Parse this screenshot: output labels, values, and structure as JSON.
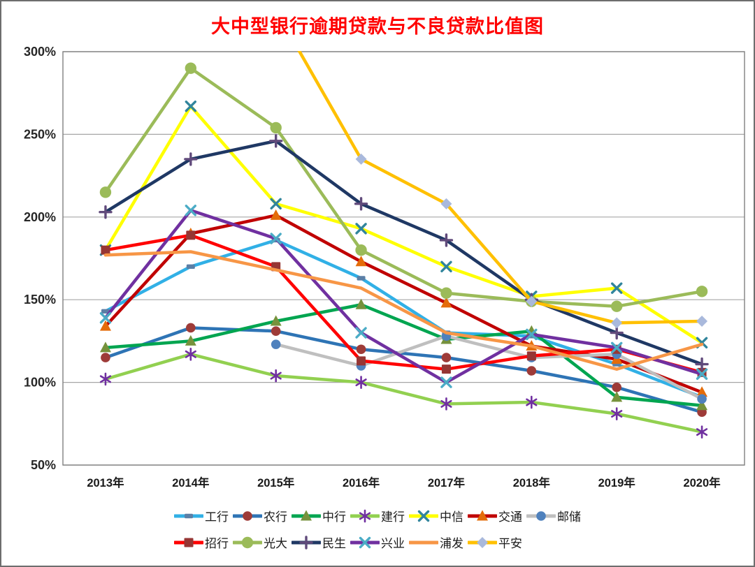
{
  "title": {
    "text": "大中型银行逾期贷款与不良贷款比值图",
    "color": "#FF0000"
  },
  "axis": {
    "grid_color": "#A6A6A6",
    "border_color": "#808080",
    "tick_color": "#262626",
    "label_color": "#1A1A1A"
  },
  "chart_data": {
    "type": "line",
    "title": "大中型银行逾期贷款与不良贷款比值图",
    "categories": [
      "2013年",
      "2014年",
      "2015年",
      "2016年",
      "2017年",
      "2018年",
      "2019年",
      "2020年"
    ],
    "y_ticks": [
      300,
      250,
      200,
      150,
      100,
      50
    ],
    "y_tick_labels": [
      "300%",
      "250%",
      "200%",
      "150%",
      "100%",
      "50%"
    ],
    "ylim": [
      50,
      300
    ],
    "unit": "%",
    "grid": true,
    "legend_position": "bottom",
    "series": [
      {
        "id": "gonghang",
        "name": "工行",
        "line_color": "#31B0E6",
        "marker": "dash",
        "marker_color": "#5B7FA6",
        "values": [
          143,
          170,
          186,
          163,
          130,
          128,
          111,
          91
        ]
      },
      {
        "id": "nonghang",
        "name": "农行",
        "line_color": "#2E74B5",
        "marker": "circle",
        "marker_color": "#9E3B38",
        "values": [
          115,
          133,
          131,
          120,
          115,
          107,
          97,
          82
        ]
      },
      {
        "id": "zhonghang",
        "name": "中行",
        "line_color": "#00A550",
        "marker": "triangle",
        "marker_color": "#76923C",
        "values": [
          121,
          125,
          137,
          147,
          126,
          131,
          91,
          86
        ]
      },
      {
        "id": "jianhang",
        "name": "建行",
        "line_color": "#92D050",
        "marker": "star",
        "marker_color": "#7030A0",
        "values": [
          102,
          117,
          104,
          100,
          87,
          88,
          81,
          70
        ]
      },
      {
        "id": "zhongxin",
        "name": "中信",
        "line_color": "#FFFF00",
        "marker": "x",
        "marker_color": "#31859C",
        "values": [
          180,
          267,
          208,
          193,
          170,
          152,
          157,
          124
        ]
      },
      {
        "id": "jiaotong",
        "name": "交通",
        "line_color": "#C00000",
        "marker": "triangle",
        "marker_color": "#E46C0A",
        "values": [
          134,
          190,
          201,
          173,
          148,
          122,
          114,
          94
        ]
      },
      {
        "id": "youchu",
        "name": "邮储",
        "line_color": "#BFBFBF",
        "marker": "circle",
        "marker_color": "#4F81BD",
        "values": [
          null,
          null,
          123,
          110,
          128,
          115,
          117,
          90
        ]
      },
      {
        "id": "zhaohang",
        "name": "招行",
        "line_color": "#FF0000",
        "marker": "square",
        "marker_color": "#963634",
        "values": [
          180,
          189,
          170,
          113,
          108,
          116,
          120,
          106
        ]
      },
      {
        "id": "guangda",
        "name": "光大",
        "line_color": "#9BBB59",
        "marker": "circle-big",
        "marker_color": "#9BBB59",
        "values": [
          215,
          290,
          254,
          180,
          154,
          149,
          146,
          155
        ]
      },
      {
        "id": "minsheng",
        "name": "民生",
        "line_color": "#1F3864",
        "marker": "plus",
        "marker_color": "#604A7B",
        "values": [
          203,
          235,
          246,
          208,
          186,
          150,
          130,
          111
        ]
      },
      {
        "id": "xingye",
        "name": "兴业",
        "line_color": "#7030A0",
        "marker": "x",
        "marker_color": "#4BACC6",
        "values": [
          139,
          204,
          187,
          130,
          100,
          129,
          121,
          105
        ]
      },
      {
        "id": "pufa",
        "name": "浦发",
        "line_color": "#F79646",
        "marker": "none",
        "marker_color": null,
        "values": [
          177,
          179,
          168,
          157,
          130,
          122,
          108,
          123
        ]
      },
      {
        "id": "pingan",
        "name": "平安",
        "line_color": "#FFC000",
        "marker": "diamond",
        "marker_color": "#A9B9DC",
        "values": [
          null,
          null,
          325,
          235,
          208,
          149,
          136,
          137
        ]
      }
    ]
  },
  "legend": {
    "rows": [
      [
        0,
        1,
        2,
        3,
        4,
        5,
        6
      ],
      [
        7,
        8,
        9,
        10,
        11,
        12
      ]
    ]
  }
}
